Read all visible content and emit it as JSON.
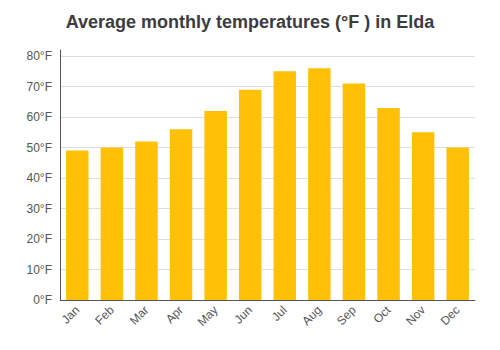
{
  "chart_data": {
    "type": "bar",
    "title": "Average monthly temperatures (°F ) in Elda",
    "categories": [
      "Jan",
      "Feb",
      "Mar",
      "Apr",
      "May",
      "Jun",
      "Jul",
      "Aug",
      "Sep",
      "Oct",
      "Nov",
      "Dec"
    ],
    "values": [
      49,
      50,
      52,
      56,
      62,
      69,
      75,
      76,
      71,
      63,
      55,
      50
    ],
    "color": "#FFC107",
    "ylim": [
      0,
      82
    ],
    "yticks": [
      {
        "value": 0,
        "label": "0°F"
      },
      {
        "value": 10,
        "label": "10°F"
      },
      {
        "value": 20,
        "label": "20°F"
      },
      {
        "value": 30,
        "label": "30°F"
      },
      {
        "value": 40,
        "label": "40°F"
      },
      {
        "value": 50,
        "label": "50°F"
      },
      {
        "value": 60,
        "label": "60°F"
      },
      {
        "value": 70,
        "label": "70°F"
      },
      {
        "value": 80,
        "label": "80°F"
      }
    ],
    "grid": true
  }
}
